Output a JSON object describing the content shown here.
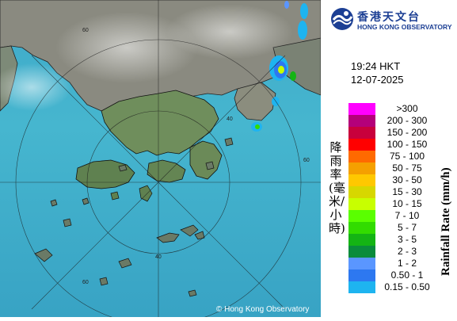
{
  "org": {
    "name_zh": "香港天文台",
    "name_en": "HONG KONG OBSERVATORY"
  },
  "timestamp": {
    "time": "19:24 HKT",
    "date": "12-07-2025"
  },
  "legend": {
    "title_en": "Rainfall Rate (mm/h)",
    "title_zh": "降雨率(毫米/小時)",
    "items": [
      {
        "label": ">300",
        "color": "#ff00ff"
      },
      {
        "label": "200 - 300",
        "color": "#b4007a"
      },
      {
        "label": "150 - 200",
        "color": "#c8003c"
      },
      {
        "label": "100 - 150",
        "color": "#ff0000"
      },
      {
        "label": "75 - 100",
        "color": "#ff6a00"
      },
      {
        "label": "50 - 75",
        "color": "#f5a000"
      },
      {
        "label": "30 - 50",
        "color": "#ffc800"
      },
      {
        "label": "15 - 30",
        "color": "#d7d700"
      },
      {
        "label": "10 - 15",
        "color": "#c8ff00"
      },
      {
        "label": "7 - 10",
        "color": "#5aff00"
      },
      {
        "label": "5 - 7",
        "color": "#32dc00"
      },
      {
        "label": "3 - 5",
        "color": "#14b414"
      },
      {
        "label": "2 - 3",
        "color": "#0a8c3c"
      },
      {
        "label": "1 - 2",
        "color": "#5a96ff"
      },
      {
        "label": "0.50 - 1",
        "color": "#2d78f0"
      },
      {
        "label": "0.15 - 0.50",
        "color": "#1eb4f0"
      }
    ]
  },
  "map": {
    "copyright": "© Hong Kong Observatory",
    "range_labels": [
      "60",
      "40",
      "60",
      "40",
      "60"
    ]
  }
}
